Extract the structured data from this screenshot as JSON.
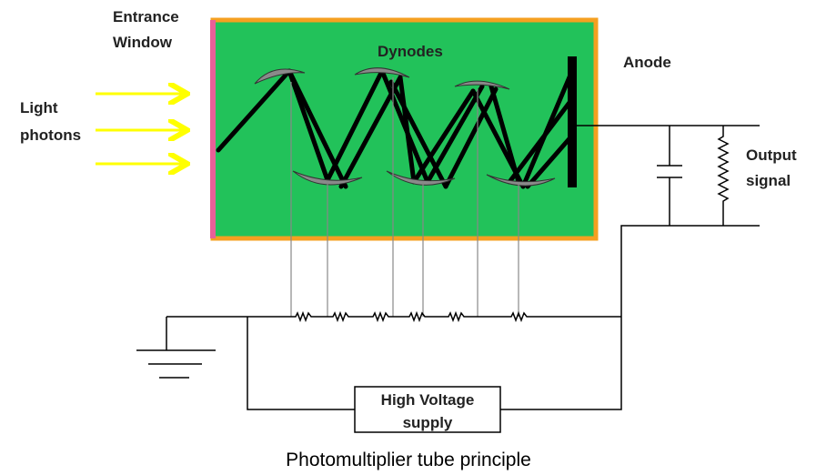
{
  "labels": {
    "entrance_window": [
      "Entrance",
      "Window"
    ],
    "light_photons": [
      "Light",
      "photons"
    ],
    "dynodes": "Dynodes",
    "anode": "Anode",
    "output_signal": [
      "Output",
      "signal"
    ],
    "high_voltage_supply": [
      "High Voltage",
      "supply"
    ],
    "caption": "Photomultiplier tube principle"
  }
}
